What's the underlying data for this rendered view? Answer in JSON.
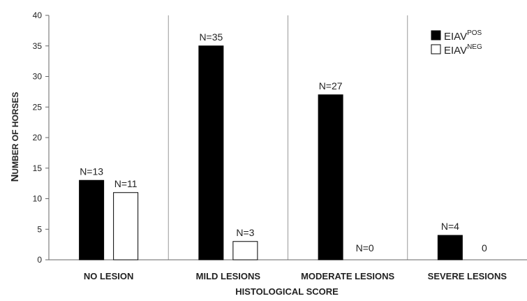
{
  "chart_data": {
    "type": "bar",
    "xlabel": "HISTOLOGICAL SCORE",
    "ylabel_cap": "N",
    "ylabel_rest": "UMBER OF HORSES",
    "ylim": [
      0,
      40
    ],
    "yticks": [
      0,
      5,
      10,
      15,
      20,
      25,
      30,
      35,
      40
    ],
    "categories": [
      "NO LESION",
      "MILD LESIONS",
      "MODERATE LESIONS",
      "SEVERE  LESIONS"
    ],
    "series": [
      {
        "name_base": "EIAV",
        "name_sup": "POS",
        "color": "#000000",
        "values": [
          13,
          35,
          27,
          4
        ],
        "labels": [
          "N=13",
          "N=35",
          "N=27",
          "N=4"
        ]
      },
      {
        "name_base": "EIAV",
        "name_sup": "NEG",
        "color": "#ffffff",
        "values": [
          11,
          3,
          0,
          0
        ],
        "labels": [
          "N=11",
          "N=3",
          "N=0",
          "0"
        ]
      }
    ],
    "grid": false,
    "legend": "top-right"
  }
}
